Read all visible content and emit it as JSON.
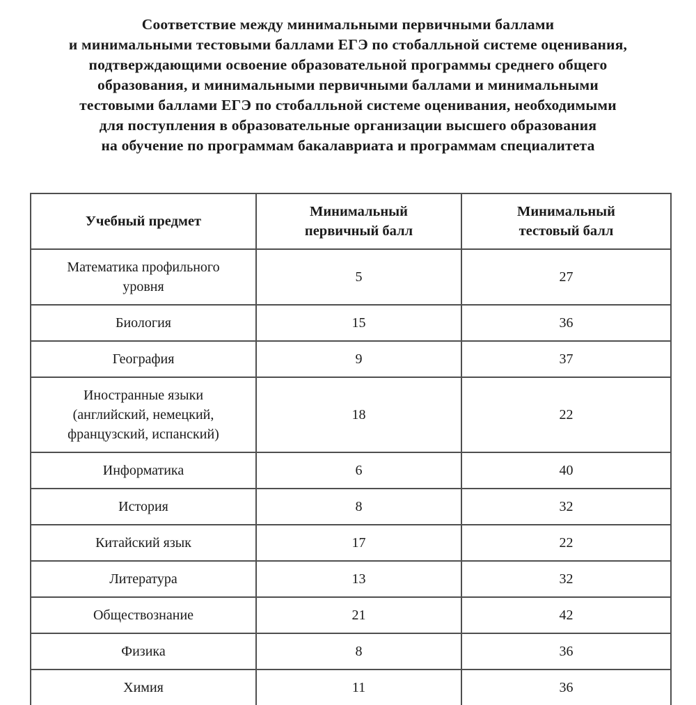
{
  "title": {
    "lines": [
      "Соответствие между минимальными первичными баллами",
      "и минимальными тестовыми баллами ЕГЭ по стобалльной системе оценивания,",
      "подтверждающими освоение образовательной программы среднего общего",
      "образования, и минимальными первичными баллами и минимальными",
      "тестовыми баллами ЕГЭ по стобалльной системе оценивания, необходимыми",
      "для поступления в образовательные организации высшего образования",
      "на обучение по программам бакалавриата и программам специалитета"
    ]
  },
  "table": {
    "headers": {
      "subject": "Учебный предмет",
      "primary": "Минимальный\nпервичный балл",
      "test": "Минимальный\nтестовый балл"
    },
    "rows": [
      {
        "subject": "Математика профильного\nуровня",
        "primary": "5",
        "test": "27"
      },
      {
        "subject": "Биология",
        "primary": "15",
        "test": "36"
      },
      {
        "subject": "География",
        "primary": "9",
        "test": "37"
      },
      {
        "subject": "Иностранные языки\n(английский, немецкий,\nфранцузский, испанский)",
        "primary": "18",
        "test": "22"
      },
      {
        "subject": "Информатика",
        "primary": "6",
        "test": "40"
      },
      {
        "subject": "История",
        "primary": "8",
        "test": "32"
      },
      {
        "subject": "Китайский язык",
        "primary": "17",
        "test": "22"
      },
      {
        "subject": "Литература",
        "primary": "13",
        "test": "32"
      },
      {
        "subject": "Обществознание",
        "primary": "21",
        "test": "42"
      },
      {
        "subject": "Физика",
        "primary": "8",
        "test": "36"
      },
      {
        "subject": "Химия",
        "primary": "11",
        "test": "36"
      }
    ]
  },
  "colors": {
    "text": "#1b1b1b",
    "table_border": "#4f4f4f",
    "background": "#ffffff"
  }
}
